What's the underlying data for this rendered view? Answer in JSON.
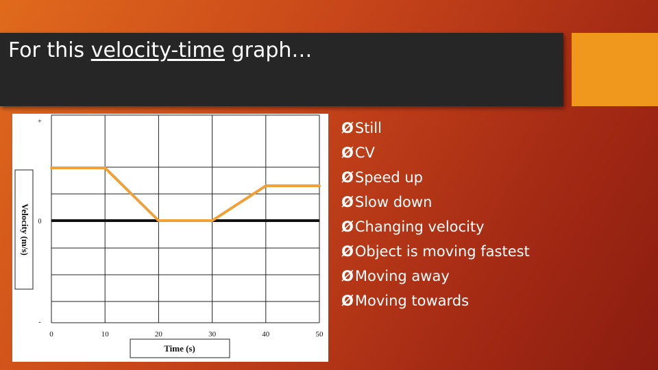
{
  "slide": {
    "title_prefix": "For this ",
    "title_underlined": "velocity-time",
    "title_suffix": " graph…"
  },
  "bullets": [
    "Still",
    "CV",
    "Speed up",
    "Slow down",
    "Changing velocity",
    "Object is moving fastest",
    "Moving away",
    "Moving towards"
  ],
  "bullet_marker": "Ø",
  "colors": {
    "title_bar": "#262626",
    "accent": "#f0971e",
    "line": "#f0a035",
    "background_start": "#e06a1c",
    "background_end": "#8a1c10"
  },
  "chart_data": {
    "type": "line",
    "xlabel": "Time (s)",
    "ylabel": "Velocity (m/s)",
    "x_ticks": [
      "0",
      "10",
      "20",
      "30",
      "40",
      "50"
    ],
    "y_ticks": [
      "+",
      "0",
      "-"
    ],
    "xlim": [
      0,
      50
    ],
    "grid": true,
    "series": [
      {
        "x": [
          0,
          10,
          20,
          30,
          40,
          50
        ],
        "y": [
          0.5,
          0.5,
          0,
          0,
          0.33,
          0.33
        ]
      }
    ]
  }
}
